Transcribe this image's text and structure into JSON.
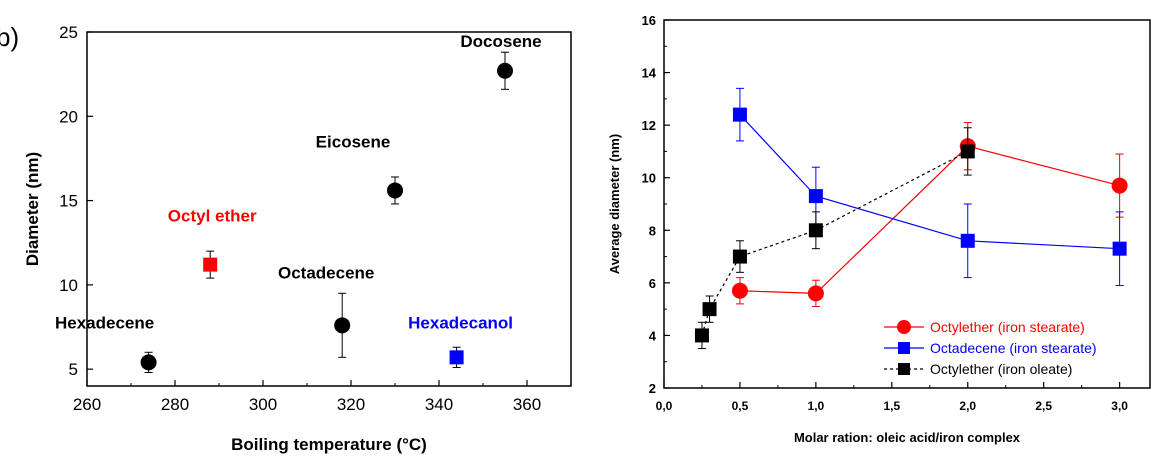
{
  "panel_label": "b)",
  "chart_data": [
    {
      "type": "scatter",
      "xlabel": "Boiling temperature (°C)",
      "ylabel": "Diameter (nm)",
      "xlim": [
        260,
        370
      ],
      "ylim": [
        4,
        25
      ],
      "xticks": [
        260,
        280,
        300,
        320,
        340,
        360
      ],
      "yticks": [
        5,
        10,
        15,
        20,
        25
      ],
      "grid": false,
      "points": [
        {
          "label": "Hexadecene",
          "x": 274,
          "y": 5.4,
          "err": 0.6,
          "marker": "circle",
          "color": "#000000"
        },
        {
          "label": "Octyl ether",
          "x": 288,
          "y": 11.2,
          "err": 0.8,
          "marker": "square",
          "color": "#ff0000"
        },
        {
          "label": "Octadecene",
          "x": 318,
          "y": 7.6,
          "err": 1.9,
          "marker": "circle",
          "color": "#000000"
        },
        {
          "label": "Eicosene",
          "x": 330,
          "y": 15.6,
          "err": 0.8,
          "marker": "circle",
          "color": "#000000"
        },
        {
          "label": "Hexadecanol",
          "x": 344,
          "y": 5.7,
          "err": 0.6,
          "marker": "square",
          "color": "#0000ff"
        },
        {
          "label": "Docosene",
          "x": 355,
          "y": 22.7,
          "err": 1.1,
          "marker": "circle",
          "color": "#000000"
        }
      ]
    },
    {
      "type": "line",
      "xlabel": "Molar ration: oleic acid/iron complex",
      "ylabel": "Average diameter (nm)",
      "xlim": [
        0,
        3.2
      ],
      "ylim": [
        2,
        16
      ],
      "xticks": [
        "0,0",
        "0,5",
        "1,0",
        "1,5",
        "2,0",
        "2,5",
        "3,0"
      ],
      "yticks": [
        2,
        4,
        6,
        8,
        10,
        12,
        14,
        16
      ],
      "grid": false,
      "legend_position": "bottom-right",
      "series": [
        {
          "name": "Octylether (iron stearate)",
          "color": "#ff0000",
          "marker": "circle",
          "dash": "solid",
          "x": [
            0.5,
            1.0,
            2.0,
            3.0
          ],
          "y": [
            5.7,
            5.6,
            11.2,
            9.7
          ],
          "err": [
            0.5,
            0.5,
            0.9,
            1.2
          ]
        },
        {
          "name": "Octadecene (iron stearate)",
          "color": "#0000ff",
          "marker": "square",
          "dash": "solid",
          "x": [
            0.5,
            1.0,
            2.0,
            3.0
          ],
          "y": [
            12.4,
            9.3,
            7.6,
            7.3
          ],
          "err": [
            1.0,
            1.1,
            1.4,
            1.4
          ]
        },
        {
          "name": "Octylether (iron oleate)",
          "color": "#000000",
          "marker": "square",
          "dash": "dotted",
          "x": [
            0.25,
            0.3,
            0.5,
            1.0,
            2.0
          ],
          "y": [
            4.0,
            5.0,
            7.0,
            8.0,
            11.0
          ],
          "err": [
            0.5,
            0.5,
            0.6,
            0.7,
            0.9
          ]
        }
      ]
    }
  ]
}
